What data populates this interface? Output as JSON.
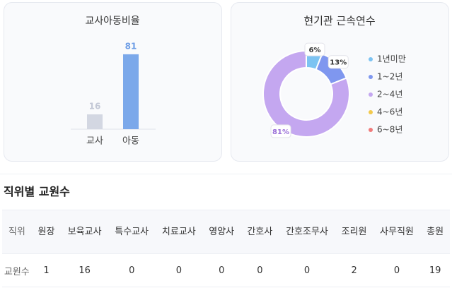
{
  "chart_data": [
    {
      "type": "bar",
      "title": "교사아동비율",
      "categories": [
        "교사",
        "아동"
      ],
      "values": [
        16,
        81
      ],
      "colors": [
        "#d3d7e2",
        "#7ba8ea"
      ],
      "label_colors": [
        "#c3c8d6",
        "#6f9ee6"
      ]
    },
    {
      "type": "pie",
      "title": "현기관 근속연수",
      "categories": [
        "1년미만",
        "1~2년",
        "2~4년",
        "4~6년",
        "6~8년"
      ],
      "values": [
        6,
        13,
        81,
        0,
        0
      ],
      "value_labels": [
        "6%",
        "13%",
        "81%",
        null,
        null
      ],
      "colors": [
        "#7cc3f2",
        "#7f97ef",
        "#c4a7f0",
        "#f2c94c",
        "#f07b7b"
      ],
      "label_colors": [
        "#333333",
        "#333333",
        "#9a6fd8",
        null,
        null
      ]
    }
  ],
  "section_title": "직위별 교원수",
  "table": {
    "header": [
      "직위",
      "원장",
      "보육교사",
      "특수교사",
      "치료교사",
      "영양사",
      "간호사",
      "간호조무사",
      "조리원",
      "사무직원",
      "총원"
    ],
    "rows": [
      [
        "교원수",
        1,
        16,
        0,
        0,
        0,
        0,
        0,
        2,
        0,
        19
      ]
    ]
  }
}
